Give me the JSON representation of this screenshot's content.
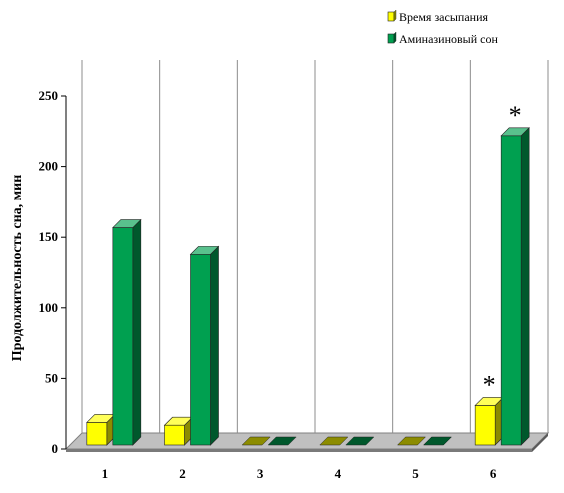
{
  "chart_data": {
    "type": "bar",
    "categories": [
      "1",
      "2",
      "3",
      "4",
      "5",
      "6"
    ],
    "series": [
      {
        "name": "Время засыпания",
        "values": [
          16,
          14,
          0,
          0,
          0,
          28
        ],
        "color": "#ffff00"
      },
      {
        "name": "Аминазиновый сон",
        "values": [
          154,
          135,
          0,
          0,
          0,
          219
        ],
        "color": "#00a050"
      }
    ],
    "ylabel": "Продолжительность сна, мин",
    "xlabel": "",
    "ylim": [
      0,
      250
    ],
    "yticks": [
      0,
      50,
      100,
      150,
      200,
      250
    ],
    "grid": "vertical",
    "legend": "top-right",
    "annotations": [
      {
        "text": "*",
        "category": "6",
        "series": "Время засыпания"
      },
      {
        "text": "*",
        "category": "6",
        "series": "Аминазиновый сон"
      }
    ]
  }
}
